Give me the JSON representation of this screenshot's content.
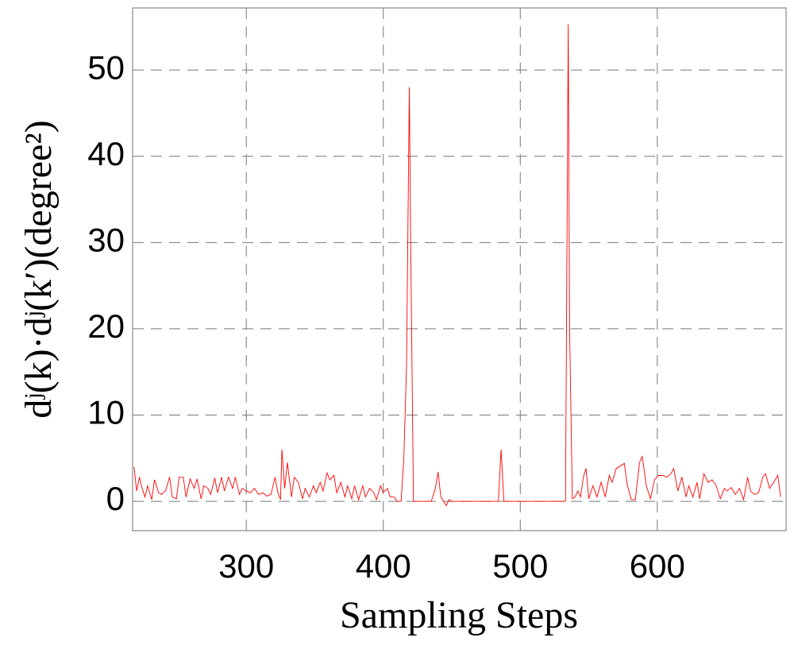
{
  "chart_data": {
    "type": "line",
    "xlabel": "Sampling Steps",
    "ylabel": "dʲ(k)·dʲ(k′)(degree²)",
    "xlim": [
      217,
      694
    ],
    "ylim": [
      -3.4,
      57.2
    ],
    "xticks": [
      300,
      400,
      500,
      600
    ],
    "yticks": [
      0,
      10,
      20,
      30,
      40,
      50
    ],
    "grid": true,
    "series": [
      {
        "color": "#ff0000",
        "x": [
          218,
          220,
          222,
          224,
          226,
          228,
          231,
          233,
          236,
          238,
          241,
          244,
          246,
          249,
          251,
          254,
          256,
          259,
          262,
          264,
          267,
          269,
          272,
          274,
          277,
          279,
          282,
          284,
          287,
          290,
          292,
          295,
          297,
          300,
          303,
          306,
          309,
          312,
          315,
          318,
          321,
          323,
          325,
          326,
          328,
          330,
          333,
          335,
          338,
          341,
          343,
          346,
          349,
          351,
          354,
          356,
          359,
          361,
          364,
          366,
          369,
          372,
          374,
          377,
          379,
          382,
          385,
          387,
          390,
          393,
          395,
          398,
          400,
          403,
          405,
          408,
          410,
          413,
          415,
          417,
          419,
          420,
          422,
          430,
          435,
          438,
          440,
          442,
          444,
          446,
          448,
          450,
          470,
          484,
          486,
          488,
          500,
          520,
          533,
          535,
          536,
          538,
          540,
          542,
          544,
          546,
          548,
          550,
          553,
          556,
          559,
          562,
          565,
          567,
          570,
          573,
          576,
          578,
          581,
          584,
          587,
          589,
          592,
          595,
          598,
          601,
          604,
          607,
          610,
          612,
          615,
          618,
          621,
          623,
          626,
          629,
          631,
          634,
          637,
          640,
          643,
          646,
          649,
          651,
          654,
          657,
          660,
          663,
          666,
          668,
          671,
          674,
          677,
          679,
          682,
          685,
          688,
          690
        ],
        "values": [
          4,
          1.2,
          2.8,
          1.5,
          0.5,
          1.8,
          0.2,
          2.5,
          1.0,
          0.8,
          1.2,
          2.8,
          0.5,
          0.3,
          2.8,
          2.8,
          0.5,
          2.6,
          1.5,
          2.6,
          0.3,
          1.8,
          1.5,
          0.8,
          2.7,
          1.0,
          2.8,
          1.2,
          2.8,
          1.5,
          2.8,
          0.8,
          1.5,
          1.2,
          1.0,
          1.5,
          0.8,
          1.0,
          0.6,
          0.8,
          2.8,
          1.0,
          0.2,
          6.0,
          1.5,
          4.5,
          0.5,
          2.8,
          2.2,
          0.3,
          1.5,
          0.5,
          1.8,
          1.0,
          2.2,
          1.2,
          3.3,
          2.5,
          3.0,
          1.0,
          2.2,
          0.5,
          1.8,
          0.3,
          1.8,
          0.2,
          1.8,
          0.5,
          1.5,
          1.0,
          0.2,
          1.8,
          1.0,
          1.5,
          0.5,
          0.5,
          0,
          0,
          5,
          16,
          48,
          30,
          0,
          0,
          0,
          1.5,
          3.4,
          0.5,
          0,
          -0.5,
          0.2,
          0,
          0,
          0,
          6.0,
          0,
          0,
          0,
          0,
          55.3,
          20,
          0.3,
          0.5,
          1.2,
          0.5,
          2.8,
          3.8,
          0.3,
          1.8,
          0.5,
          2.2,
          0.5,
          3.0,
          2.2,
          3.8,
          4.1,
          4.4,
          2.0,
          0.2,
          0.2,
          4.5,
          5.2,
          1.8,
          0.3,
          2.5,
          3.0,
          3.0,
          2.8,
          3.2,
          3.8,
          1.2,
          2.8,
          0.5,
          1.8,
          0.5,
          2.2,
          0.3,
          3.2,
          2.2,
          2.5,
          1.8,
          0.3,
          1.5,
          1.2,
          1.6,
          0.8,
          1.5,
          0.2,
          2.8,
          1.2,
          0.8,
          1.0,
          2.8,
          3.2,
          1.5,
          2.2,
          3.0,
          0.5
        ]
      }
    ]
  }
}
